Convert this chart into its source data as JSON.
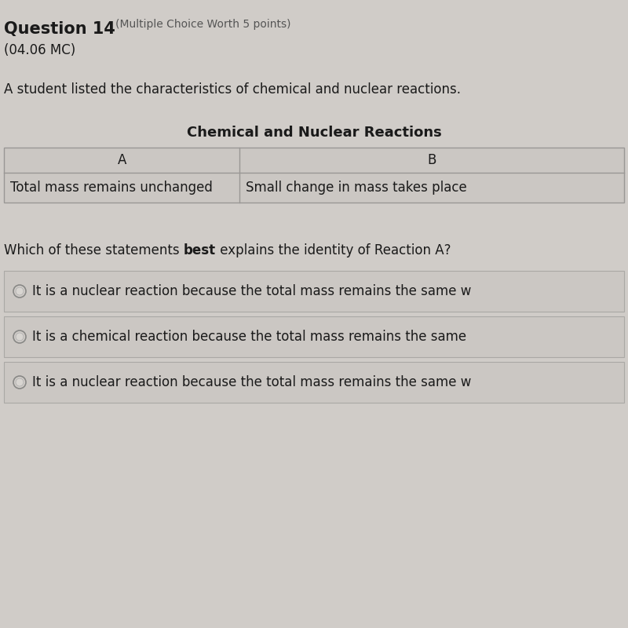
{
  "bg_color": "#d0ccc8",
  "title_bold": "Question 14",
  "title_normal": "(Multiple Choice Worth 5 points)",
  "subtitle": "(04.06 MC)",
  "body_text": "A student listed the characteristics of chemical and nuclear reactions.",
  "table_title": "Chemical and Nuclear Reactions",
  "col_a_header": "A",
  "col_b_header": "B",
  "col_a_data": "Total mass remains unchanged",
  "col_b_data": "Small change in mass takes place",
  "question_pre": "Which of these statements ",
  "question_bold": "best",
  "question_post": " explains the identity of Reaction A?",
  "choices": [
    "It is a nuclear reaction because the total mass remains the same w",
    "It is a chemical reaction because the total mass remains the same",
    "It is a nuclear reaction because the total mass remains the same w"
  ],
  "choice_bg": "#cbc7c3",
  "choice_border": "#aaa8a5",
  "table_bg": "#cbc7c3",
  "table_border": "#999795",
  "title_fontsize": 15,
  "subtitle_fontsize": 12,
  "body_fontsize": 12,
  "table_title_fontsize": 12,
  "table_cell_fontsize": 12,
  "question_fontsize": 12,
  "choice_fontsize": 12
}
